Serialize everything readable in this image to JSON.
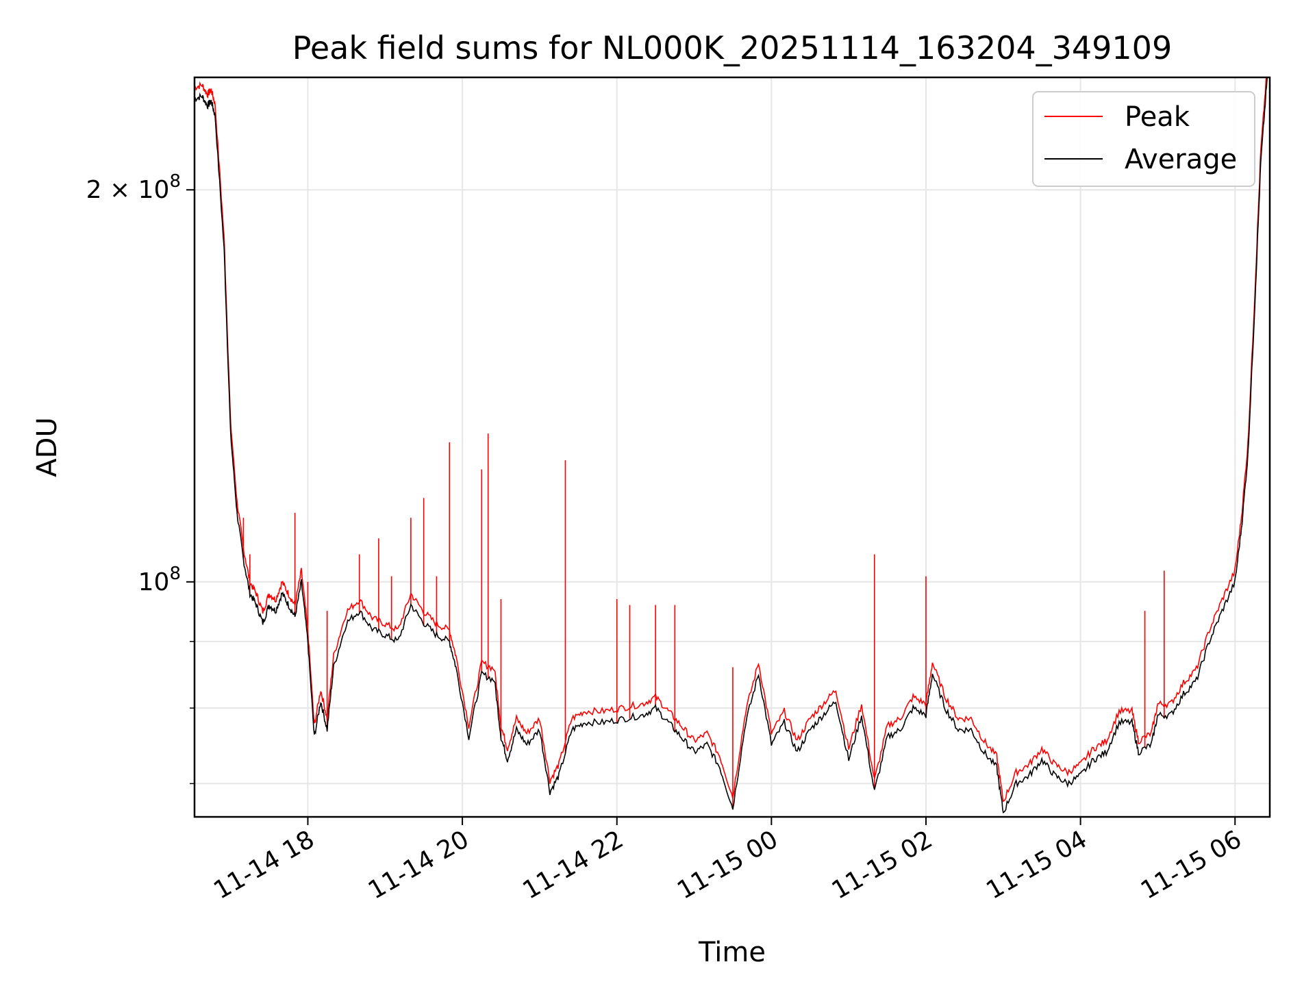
{
  "chart_data": {
    "type": "line",
    "title": "Peak field sums for NL000K_20251114_163204_349109",
    "xlabel": "Time",
    "ylabel": "ADU",
    "x_scale": "time",
    "y_scale": "log",
    "xlim": [
      "2025-11-14 16:32",
      "2025-11-15 06:27"
    ],
    "ylim": [
      66000000,
      244000000
    ],
    "x_ticks": [
      "11-14 18",
      "11-14 20",
      "11-14 22",
      "11-15 00",
      "11-15 02",
      "11-15 04",
      "11-15 06"
    ],
    "x_tick_values": [
      "2025-11-14 18:00",
      "2025-11-14 20:00",
      "2025-11-14 22:00",
      "2025-11-15 00:00",
      "2025-11-15 02:00",
      "2025-11-15 04:00",
      "2025-11-15 06:00"
    ],
    "y_ticks_major": [
      {
        "value": 100000000,
        "base": "10",
        "exp": "8",
        "coef": ""
      },
      {
        "value": 200000000,
        "base": "10",
        "exp": "8",
        "coef": "2 × "
      }
    ],
    "y_ticks_minor": [
      70000000,
      80000000,
      90000000
    ],
    "grid": true,
    "legend_position": "top-right",
    "colors": {
      "peak": "#ff0000",
      "average": "#000000",
      "grid": "#e6e6e6"
    },
    "series": [
      {
        "name": "Average",
        "color": "#000000",
        "points": [
          [
            "2025-11-14 16:32",
            235000000
          ],
          [
            "2025-11-14 16:38",
            236000000
          ],
          [
            "2025-11-14 16:42",
            232000000
          ],
          [
            "2025-11-14 16:45",
            234000000
          ],
          [
            "2025-11-14 16:48",
            228000000
          ],
          [
            "2025-11-14 16:55",
            180000000
          ],
          [
            "2025-11-14 17:00",
            130000000
          ],
          [
            "2025-11-14 17:05",
            113000000
          ],
          [
            "2025-11-14 17:10",
            104000000
          ],
          [
            "2025-11-14 17:15",
            98000000
          ],
          [
            "2025-11-14 17:20",
            96000000
          ],
          [
            "2025-11-14 17:25",
            93000000
          ],
          [
            "2025-11-14 17:30",
            96000000
          ],
          [
            "2025-11-14 17:35",
            95000000
          ],
          [
            "2025-11-14 17:40",
            98000000
          ],
          [
            "2025-11-14 17:45",
            96000000
          ],
          [
            "2025-11-14 17:50",
            94000000
          ],
          [
            "2025-11-14 17:55",
            100000000
          ],
          [
            "2025-11-14 18:00",
            90000000
          ],
          [
            "2025-11-14 18:05",
            76000000
          ],
          [
            "2025-11-14 18:10",
            81000000
          ],
          [
            "2025-11-14 18:15",
            77000000
          ],
          [
            "2025-11-14 18:20",
            86000000
          ],
          [
            "2025-11-14 18:30",
            93000000
          ],
          [
            "2025-11-14 18:40",
            95000000
          ],
          [
            "2025-11-14 18:50",
            92000000
          ],
          [
            "2025-11-14 19:00",
            91000000
          ],
          [
            "2025-11-14 19:10",
            90000000
          ],
          [
            "2025-11-14 19:20",
            96000000
          ],
          [
            "2025-11-14 19:30",
            93000000
          ],
          [
            "2025-11-14 19:40",
            91000000
          ],
          [
            "2025-11-14 19:50",
            90000000
          ],
          [
            "2025-11-14 19:55",
            86000000
          ],
          [
            "2025-11-14 20:05",
            76000000
          ],
          [
            "2025-11-14 20:15",
            85000000
          ],
          [
            "2025-11-14 20:25",
            84000000
          ],
          [
            "2025-11-14 20:30",
            76000000
          ],
          [
            "2025-11-14 20:35",
            73000000
          ],
          [
            "2025-11-14 20:42",
            77000000
          ],
          [
            "2025-11-14 20:50",
            75000000
          ],
          [
            "2025-11-14 21:00",
            77000000
          ],
          [
            "2025-11-14 21:08",
            69000000
          ],
          [
            "2025-11-14 21:15",
            71000000
          ],
          [
            "2025-11-14 21:25",
            77000000
          ],
          [
            "2025-11-14 21:35",
            78000000
          ],
          [
            "2025-11-14 21:50",
            78000000
          ],
          [
            "2025-11-14 22:05",
            78500000
          ],
          [
            "2025-11-14 22:20",
            79000000
          ],
          [
            "2025-11-14 22:30",
            80000000
          ],
          [
            "2025-11-14 22:40",
            78000000
          ],
          [
            "2025-11-14 22:50",
            76000000
          ],
          [
            "2025-11-14 23:00",
            74000000
          ],
          [
            "2025-11-14 23:10",
            75000000
          ],
          [
            "2025-11-14 23:20",
            72000000
          ],
          [
            "2025-11-14 23:30",
            67000000
          ],
          [
            "2025-11-14 23:40",
            78000000
          ],
          [
            "2025-11-14 23:50",
            85000000
          ],
          [
            "2025-11-15 00:00",
            75000000
          ],
          [
            "2025-11-15 00:10",
            78000000
          ],
          [
            "2025-11-15 00:20",
            74000000
          ],
          [
            "2025-11-15 00:30",
            77000000
          ],
          [
            "2025-11-15 00:40",
            79000000
          ],
          [
            "2025-11-15 00:50",
            81000000
          ],
          [
            "2025-11-15 01:00",
            73000000
          ],
          [
            "2025-11-15 01:10",
            79000000
          ],
          [
            "2025-11-15 01:20",
            69000000
          ],
          [
            "2025-11-15 01:30",
            76000000
          ],
          [
            "2025-11-15 01:40",
            77000000
          ],
          [
            "2025-11-15 01:50",
            80000000
          ],
          [
            "2025-11-15 02:00",
            79000000
          ],
          [
            "2025-11-15 02:05",
            85000000
          ],
          [
            "2025-11-15 02:15",
            80000000
          ],
          [
            "2025-11-15 02:25",
            77000000
          ],
          [
            "2025-11-15 02:35",
            77000000
          ],
          [
            "2025-11-15 02:45",
            74000000
          ],
          [
            "2025-11-15 02:55",
            72000000
          ],
          [
            "2025-11-15 03:00",
            66500000
          ],
          [
            "2025-11-15 03:10",
            70000000
          ],
          [
            "2025-11-15 03:20",
            71000000
          ],
          [
            "2025-11-15 03:30",
            73000000
          ],
          [
            "2025-11-15 03:40",
            71000000
          ],
          [
            "2025-11-15 03:50",
            70000000
          ],
          [
            "2025-11-15 04:00",
            71000000
          ],
          [
            "2025-11-15 04:10",
            73000000
          ],
          [
            "2025-11-15 04:20",
            74000000
          ],
          [
            "2025-11-15 04:30",
            78000000
          ],
          [
            "2025-11-15 04:40",
            78000000
          ],
          [
            "2025-11-15 04:45",
            74000000
          ],
          [
            "2025-11-15 04:55",
            75000000
          ],
          [
            "2025-11-15 05:00",
            79000000
          ],
          [
            "2025-11-15 05:10",
            79000000
          ],
          [
            "2025-11-15 05:20",
            82000000
          ],
          [
            "2025-11-15 05:30",
            84000000
          ],
          [
            "2025-11-15 05:40",
            90000000
          ],
          [
            "2025-11-15 05:50",
            95000000
          ],
          [
            "2025-11-15 06:00",
            100000000
          ],
          [
            "2025-11-15 06:05",
            110000000
          ],
          [
            "2025-11-15 06:10",
            125000000
          ],
          [
            "2025-11-15 06:15",
            160000000
          ],
          [
            "2025-11-15 06:20",
            210000000
          ],
          [
            "2025-11-15 06:25",
            244000000
          ]
        ]
      },
      {
        "name": "Peak",
        "color": "#ff0000",
        "note_offset": 1.02,
        "spikes": [
          [
            "2025-11-14 17:05",
            115000000
          ],
          [
            "2025-11-14 17:10",
            112000000
          ],
          [
            "2025-11-14 17:15",
            105000000
          ],
          [
            "2025-11-14 17:50",
            113000000
          ],
          [
            "2025-11-14 18:00",
            100000000
          ],
          [
            "2025-11-14 18:15",
            95000000
          ],
          [
            "2025-11-14 18:40",
            105000000
          ],
          [
            "2025-11-14 18:55",
            108000000
          ],
          [
            "2025-11-14 19:05",
            101000000
          ],
          [
            "2025-11-14 19:20",
            112000000
          ],
          [
            "2025-11-14 19:30",
            116000000
          ],
          [
            "2025-11-14 19:40",
            101000000
          ],
          [
            "2025-11-14 19:50",
            128000000
          ],
          [
            "2025-11-14 20:15",
            122000000
          ],
          [
            "2025-11-14 20:20",
            130000000
          ],
          [
            "2025-11-14 20:30",
            97000000
          ],
          [
            "2025-11-14 21:20",
            124000000
          ],
          [
            "2025-11-14 22:00",
            97000000
          ],
          [
            "2025-11-14 22:10",
            96000000
          ],
          [
            "2025-11-14 22:30",
            96000000
          ],
          [
            "2025-11-14 22:45",
            96000000
          ],
          [
            "2025-11-14 23:30",
            86000000
          ],
          [
            "2025-11-15 01:20",
            105000000
          ],
          [
            "2025-11-15 02:00",
            101000000
          ],
          [
            "2025-11-15 04:50",
            95000000
          ],
          [
            "2025-11-15 05:05",
            102000000
          ]
        ]
      }
    ]
  }
}
